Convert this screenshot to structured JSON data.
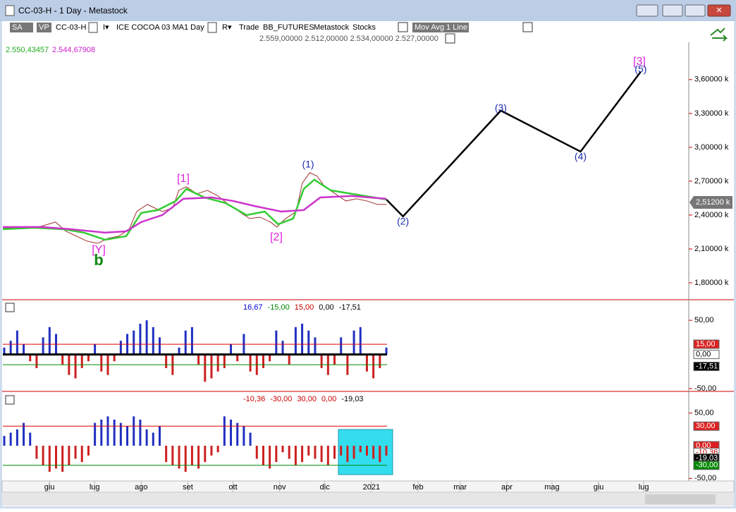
{
  "window": {
    "title": "CC-03-H - 1 Day - Metastock"
  },
  "toolbar": {
    "sa": "SA",
    "vp": "VP",
    "symbol": "CC-03-H",
    "i": "I▾",
    "name": "ICE COCOA 03 MA",
    "period": "1 Day",
    "r": "R▾",
    "trade": "Trade",
    "feed": "BB_FUTURES",
    "source": "Metastock",
    "kind": "Stocks",
    "indicator": "Mov Avg 1 Line",
    "ohlc": "2.559,00000  2.512,00000  2.534,00000  2.527,00000"
  },
  "main": {
    "ma_fast_label": "2.550,43457",
    "ma_slow_label": "2.544,67908",
    "xlim": [
      -31,
      424
    ],
    "xticks": [
      {
        "value": 0,
        "label": "giu"
      },
      {
        "value": 30,
        "label": "lug"
      },
      {
        "value": 61,
        "label": "ago"
      },
      {
        "value": 92,
        "label": "set"
      },
      {
        "value": 122,
        "label": "ott"
      },
      {
        "value": 153,
        "label": "nov"
      },
      {
        "value": 183,
        "label": "dic"
      },
      {
        "value": 214,
        "label": "2021"
      },
      {
        "value": 245,
        "label": "feb"
      },
      {
        "value": 273,
        "label": "mar"
      },
      {
        "value": 304,
        "label": "apr"
      },
      {
        "value": 334,
        "label": "mag"
      },
      {
        "value": 365,
        "label": "giu"
      },
      {
        "value": 395,
        "label": "lug"
      }
    ],
    "ylim": [
      1650,
      3930
    ],
    "yticks": [
      {
        "value": 3600,
        "label": "3,60000 k"
      },
      {
        "value": 3300,
        "label": "3,30000 k"
      },
      {
        "value": 3000,
        "label": "3,00000 k"
      },
      {
        "value": 2700,
        "label": "2,70000 k"
      },
      {
        "value": 2400,
        "label": "2,40000 k"
      },
      {
        "value": 2100,
        "label": "2,10000 k"
      },
      {
        "value": 1800,
        "label": "1,80000 k"
      }
    ],
    "last_price": {
      "value": 2512,
      "label": "2,51200 k"
    },
    "series": [
      {
        "name": "price",
        "color": "#a03030",
        "x": [
          -31,
          -19,
          -7,
          4,
          11,
          18,
          25,
          32,
          39,
          46,
          53,
          58,
          65,
          75,
          82,
          86,
          91,
          98,
          105,
          112,
          119,
          126,
          133,
          140,
          147,
          151,
          157,
          164,
          168,
          173,
          178,
          183,
          190,
          197,
          204,
          211,
          218,
          224
        ],
        "values": [
          2288,
          2281,
          2294,
          2338,
          2256,
          2213,
          2169,
          2150,
          2194,
          2213,
          2275,
          2431,
          2494,
          2431,
          2463,
          2619,
          2650,
          2588,
          2619,
          2569,
          2494,
          2431,
          2369,
          2381,
          2338,
          2294,
          2369,
          2431,
          2681,
          2775,
          2744,
          2650,
          2588,
          2525,
          2544,
          2525,
          2494,
          2494
        ]
      },
      {
        "name": "ma_fast",
        "color": "#33cc33",
        "x": [
          -31,
          -10,
          9,
          23,
          37,
          51,
          61,
          72,
          84,
          91,
          103,
          117,
          131,
          143,
          152,
          162,
          169,
          176,
          187,
          201,
          224
        ],
        "values": [
          2275,
          2288,
          2275,
          2244,
          2181,
          2213,
          2419,
          2444,
          2525,
          2631,
          2556,
          2506,
          2400,
          2431,
          2319,
          2369,
          2631,
          2713,
          2619,
          2588,
          2538
        ]
      },
      {
        "name": "ma_slow",
        "color": "#cc33cc",
        "x": [
          -31,
          -5,
          14,
          37,
          51,
          61,
          75,
          89,
          108,
          122,
          136,
          154,
          169,
          180,
          201,
          224
        ],
        "values": [
          2294,
          2294,
          2275,
          2244,
          2256,
          2338,
          2400,
          2544,
          2556,
          2525,
          2481,
          2431,
          2444,
          2556,
          2569,
          2544
        ]
      },
      {
        "name": "projection",
        "color": "#000000",
        "x": [
          224,
          235,
          300,
          353,
          393
        ],
        "values": [
          2537,
          2388,
          3325,
          2962,
          3669
        ]
      }
    ],
    "waves": [
      "(2)",
      "(3)",
      "(4)",
      "(5)"
    ],
    "annotations": {
      "y": "[Y]",
      "b": "b",
      "w1": "[1]",
      "w2": "[2]",
      "p1": "(1)",
      "w3": "[3]"
    }
  },
  "osc1": {
    "ylim": [
      -51,
      77
    ],
    "header": [
      {
        "text": "16,67",
        "color": "#0000cc"
      },
      {
        "text": "-15,00",
        "color": "#008800"
      },
      {
        "text": "15,00",
        "color": "#cc0000"
      },
      {
        "text": "0,00",
        "color": "#000000"
      },
      {
        "text": "-17,51",
        "color": "#000000"
      }
    ],
    "yticks": [
      {
        "value": 50,
        "label": "50,00"
      },
      {
        "value": -50,
        "label": "-50,00"
      }
    ],
    "levels": [
      {
        "value": 15,
        "color": "#dd0000"
      },
      {
        "value": -15,
        "color": "#008800"
      },
      {
        "value": 0,
        "color": "#000000"
      }
    ],
    "boxes": [
      {
        "value": 15,
        "label": "15,00",
        "bg": "#dd2020",
        "fg": "#ffffff"
      },
      {
        "value": 0,
        "label": "0,00",
        "bg": "#ffffff",
        "fg": "#000000"
      },
      {
        "value": -17.51,
        "label": "-17,51",
        "bg": "#000000",
        "fg": "#ffffff"
      }
    ],
    "values": [
      10,
      20,
      35,
      15,
      -10,
      -20,
      25,
      40,
      30,
      -15,
      -30,
      -35,
      -20,
      -10,
      15,
      -25,
      -30,
      -10,
      20,
      30,
      35,
      45,
      50,
      40,
      25,
      -20,
      -30,
      10,
      35,
      40,
      -15,
      -40,
      -35,
      -25,
      -20,
      15,
      -10,
      30,
      -25,
      -30,
      -20,
      -10,
      35,
      20,
      -15,
      40,
      45,
      35,
      25,
      -20,
      -30,
      -15,
      25,
      -30,
      35,
      40,
      -25,
      -35,
      -20,
      10
    ]
  },
  "osc2": {
    "ylim": [
      -54,
      80
    ],
    "header": [
      {
        "text": "-10,36",
        "color": "#cc0000"
      },
      {
        "text": "-30,00",
        "color": "#cc0000"
      },
      {
        "text": "30,00",
        "color": "#cc0000"
      },
      {
        "text": "0,00",
        "color": "#cc0000"
      },
      {
        "text": "-19,03",
        "color": "#000000"
      }
    ],
    "yticks": [
      {
        "value": 50,
        "label": "50,00"
      },
      {
        "value": -50,
        "label": "-50,00"
      }
    ],
    "levels": [
      {
        "value": 30,
        "color": "#dd0000"
      },
      {
        "value": -30,
        "color": "#008800"
      }
    ],
    "boxes": [
      {
        "value": 30,
        "label": "30,00",
        "bg": "#dd2020",
        "fg": "#ffffff"
      },
      {
        "value": 0,
        "label": "0,00",
        "bg": "#dd2020",
        "fg": "#ffffff"
      },
      {
        "value": -10.36,
        "label": "-10,36",
        "bg": "#ffffff",
        "fg": "#cc0000"
      },
      {
        "value": -19.03,
        "label": "-19,03",
        "bg": "#000000",
        "fg": "#ffffff"
      },
      {
        "value": -30,
        "label": "-30,00",
        "bg": "#008800",
        "fg": "#ffffff"
      }
    ],
    "values": [
      15,
      20,
      25,
      35,
      20,
      -20,
      -30,
      -40,
      -35,
      -40,
      -30,
      -20,
      -25,
      -15,
      35,
      40,
      45,
      40,
      35,
      30,
      45,
      40,
      25,
      20,
      30,
      -25,
      -30,
      -35,
      -40,
      -30,
      -35,
      -25,
      -15,
      -10,
      45,
      40,
      35,
      30,
      20,
      -20,
      -30,
      -35,
      -25,
      -10,
      -20,
      -30,
      -25,
      -15,
      -20,
      -25,
      -30,
      -20,
      -15,
      -25,
      -20,
      -10,
      -15,
      -20,
      -25,
      -15
    ]
  }
}
